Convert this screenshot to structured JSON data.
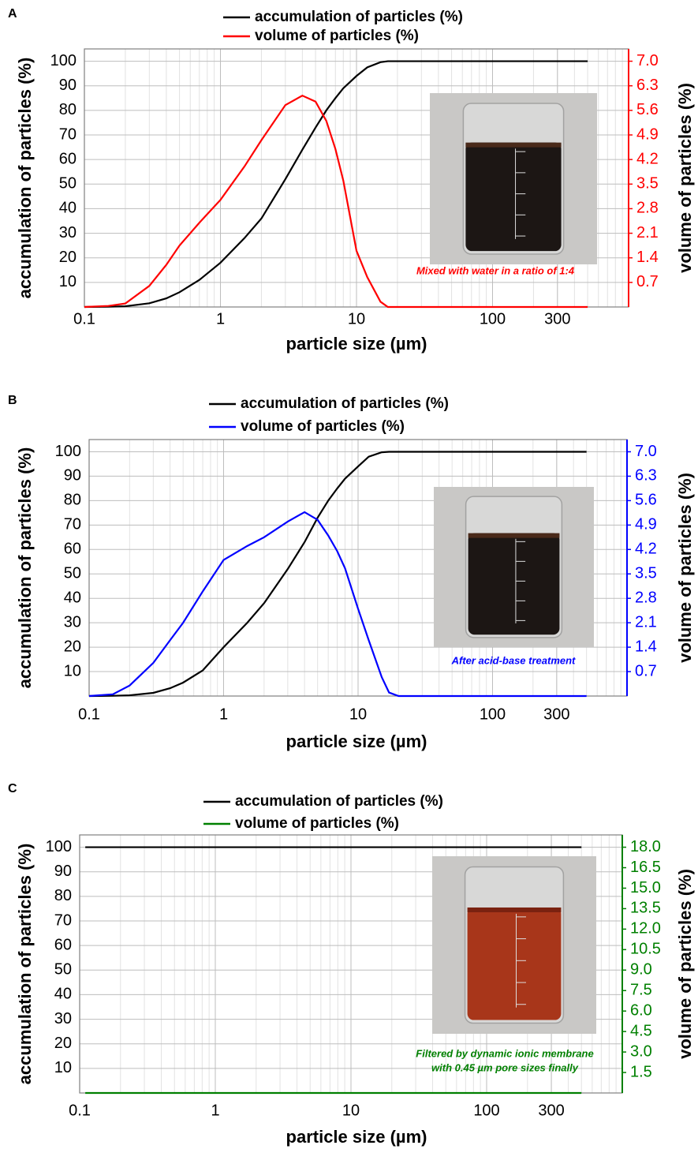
{
  "chart_data": [
    {
      "type": "line",
      "panel": "A",
      "xlabel": "particle size (µm)",
      "ylabel": "accumulation of particles (%)",
      "y2label": "volume of particles (%)",
      "annotation": [
        "Mixed with water in a ratio of 1:4"
      ],
      "log_x": true,
      "grid": true,
      "xlim": [
        0.1,
        1000
      ],
      "xticks": [
        0.1,
        1,
        10,
        100,
        300
      ],
      "ylim": [
        0,
        105
      ],
      "yticks": [
        10,
        20,
        30,
        40,
        50,
        60,
        70,
        80,
        90,
        100
      ],
      "y2lim": [
        0,
        7.35
      ],
      "y2ticks": [
        0.7,
        1.4,
        2.1,
        2.8,
        3.5,
        4.2,
        4.9,
        5.6,
        6.3,
        {
          "value": 7,
          "label": "7.0"
        }
      ],
      "x": [
        0.1,
        0.15,
        0.2,
        0.3,
        0.4,
        0.5,
        0.7,
        1,
        1.5,
        2,
        3,
        4,
        5,
        6,
        7,
        8,
        10,
        12,
        15,
        17,
        20,
        50,
        100,
        200,
        500
      ],
      "series": [
        {
          "name": "accumulation of particles (%)",
          "color": "#000000",
          "values": [
            0,
            0.1,
            0.3,
            1.5,
            3.5,
            6,
            11,
            18,
            28,
            36,
            52,
            64,
            73,
            80,
            85,
            89,
            94,
            97.5,
            99.6,
            100,
            100,
            100,
            100,
            100,
            100
          ]
        },
        {
          "name": "volume of particles (%)",
          "color": "#ff0000",
          "axis": "y2",
          "values": [
            0,
            0.03,
            0.1,
            0.6,
            1.2,
            1.75,
            2.4,
            3.05,
            4.0,
            4.75,
            5.75,
            6.02,
            5.85,
            5.3,
            4.5,
            3.6,
            1.6,
            0.85,
            0.15,
            0,
            0,
            0,
            0,
            0,
            0
          ]
        }
      ]
    },
    {
      "type": "line",
      "panel": "B",
      "xlabel": "particle size (µm)",
      "ylabel": "accumulation of particles (%)",
      "y2label": "volume of particles (%)",
      "annotation": [
        "After acid-base treatment"
      ],
      "log_x": true,
      "grid": true,
      "xlim": [
        0.1,
        1000
      ],
      "xticks": [
        0.1,
        1,
        10,
        100,
        300
      ],
      "ylim": [
        0,
        105
      ],
      "yticks": [
        10,
        20,
        30,
        40,
        50,
        60,
        70,
        80,
        90,
        100
      ],
      "y2lim": [
        0,
        7.35
      ],
      "y2ticks": [
        0.7,
        1.4,
        2.1,
        2.8,
        3.5,
        4.2,
        4.9,
        5.6,
        6.3,
        {
          "value": 7,
          "label": "7.0"
        }
      ],
      "x": [
        0.1,
        0.15,
        0.2,
        0.3,
        0.4,
        0.5,
        0.7,
        1,
        1.5,
        2,
        3,
        4,
        5,
        6,
        7,
        8,
        10,
        12,
        15,
        17,
        20,
        50,
        100,
        200,
        500
      ],
      "series": [
        {
          "name": "accumulation of particles (%)",
          "color": "#000000",
          "values": [
            0,
            0.1,
            0.3,
            1.3,
            3.2,
            5.5,
            10.5,
            20,
            30,
            38,
            52,
            63,
            73,
            80,
            85,
            89,
            94,
            98,
            99.8,
            100,
            100,
            100,
            100,
            100,
            100
          ]
        },
        {
          "name": "volume of particles (%)",
          "color": "#0000ff",
          "axis": "y2",
          "values": [
            0,
            0.05,
            0.3,
            0.95,
            1.6,
            2.1,
            3.0,
            3.9,
            4.3,
            4.55,
            5.0,
            5.27,
            5.05,
            4.6,
            4.15,
            3.66,
            2.5,
            1.6,
            0.54,
            0.1,
            0,
            0,
            0,
            0,
            0
          ]
        }
      ]
    },
    {
      "type": "line",
      "panel": "C",
      "xlabel": "particle size (µm)",
      "ylabel": "accumulation of particles (%)",
      "y2label": "volume of particles (%)",
      "annotation": [
        "Filtered by dynamic ionic membrane",
        "with 0.45 µm pore sizes finally"
      ],
      "log_x": true,
      "grid": true,
      "xlim": [
        0.1,
        1000
      ],
      "xticks": [
        0.1,
        1,
        10,
        100,
        300
      ],
      "ylim": [
        0,
        105
      ],
      "yticks": [
        10,
        20,
        30,
        40,
        50,
        60,
        70,
        80,
        90,
        100
      ],
      "y2lim": [
        0,
        18.9
      ],
      "y2ticks": [
        1.5,
        {
          "value": 3,
          "label": "3.0"
        },
        4.5,
        {
          "value": 6,
          "label": "6.0"
        },
        7.5,
        {
          "value": 9,
          "label": "9.0"
        },
        10.5,
        {
          "value": 12,
          "label": "12.0"
        },
        13.5,
        {
          "value": 15,
          "label": "15.0"
        },
        16.5,
        {
          "value": 18,
          "label": "18.0"
        }
      ],
      "x": [
        0.11,
        500
      ],
      "series": [
        {
          "name": "accumulation of particles (%)",
          "color": "#000000",
          "values": [
            100,
            100
          ]
        },
        {
          "name": "volume of particles (%)",
          "color": "#008000",
          "axis": "y2",
          "values": [
            0,
            0
          ]
        }
      ]
    }
  ]
}
